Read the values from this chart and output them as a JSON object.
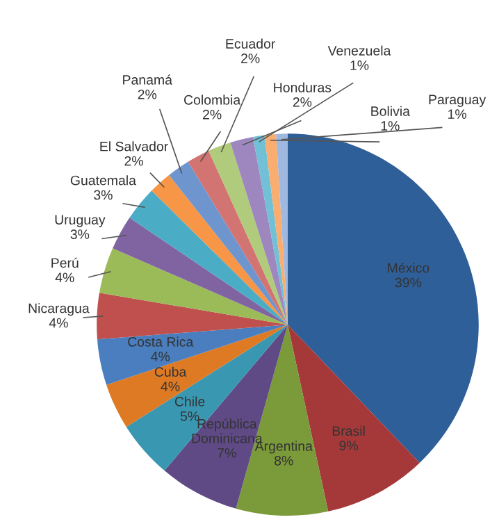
{
  "chart_data": {
    "type": "pie",
    "categories": [
      "México",
      "Brasil",
      "Argentina",
      "República\nDominicana",
      "Chile",
      "Cuba",
      "Costa Rica",
      "Nicaragua",
      "Perú",
      "Uruguay",
      "Guatemala",
      "El Salvador",
      "Panamá",
      "Colombia",
      "Ecuador",
      "Honduras",
      "Venezuela",
      "Bolivia",
      "Paraguay"
    ],
    "values": [
      39,
      9,
      8,
      7,
      5,
      4,
      4,
      4,
      4,
      3,
      3,
      2,
      2,
      2,
      2,
      2,
      1,
      1,
      1
    ],
    "colors": [
      "#2f5f98",
      "#a5393a",
      "#7b9a3a",
      "#5f4a86",
      "#3a97b2",
      "#de7a24",
      "#4a7ebe",
      "#c0504d",
      "#9bbb59",
      "#8064a2",
      "#4bacc6",
      "#f79646",
      "#6f95cf",
      "#d27471",
      "#b1cb7c",
      "#9e87be",
      "#72c0d6",
      "#f9ad6e",
      "#9fb8e0"
    ],
    "value_labels": [
      "39%",
      "9%",
      "8%",
      "7%",
      "5%",
      "4%",
      "4%",
      "4%",
      "4%",
      "3%",
      "3%",
      "2%",
      "2%",
      "2%",
      "2%",
      "2%",
      "1%",
      "1%",
      "1%"
    ]
  }
}
